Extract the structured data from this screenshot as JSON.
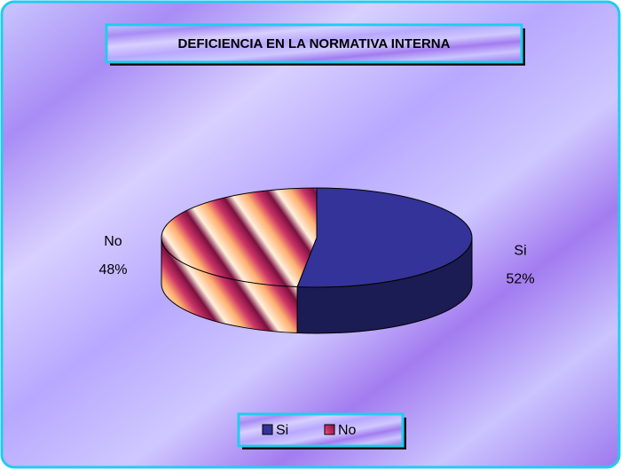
{
  "chart_data": {
    "type": "pie3d",
    "title": "DEFICIENCIA EN LA NORMATIVA INTERNA",
    "categories": [
      "Si",
      "No"
    ],
    "values": [
      52,
      48
    ],
    "value_labels": [
      "52%",
      "48%"
    ],
    "colors": [
      "#333399",
      "#cc3366"
    ],
    "legend": "bottom"
  }
}
